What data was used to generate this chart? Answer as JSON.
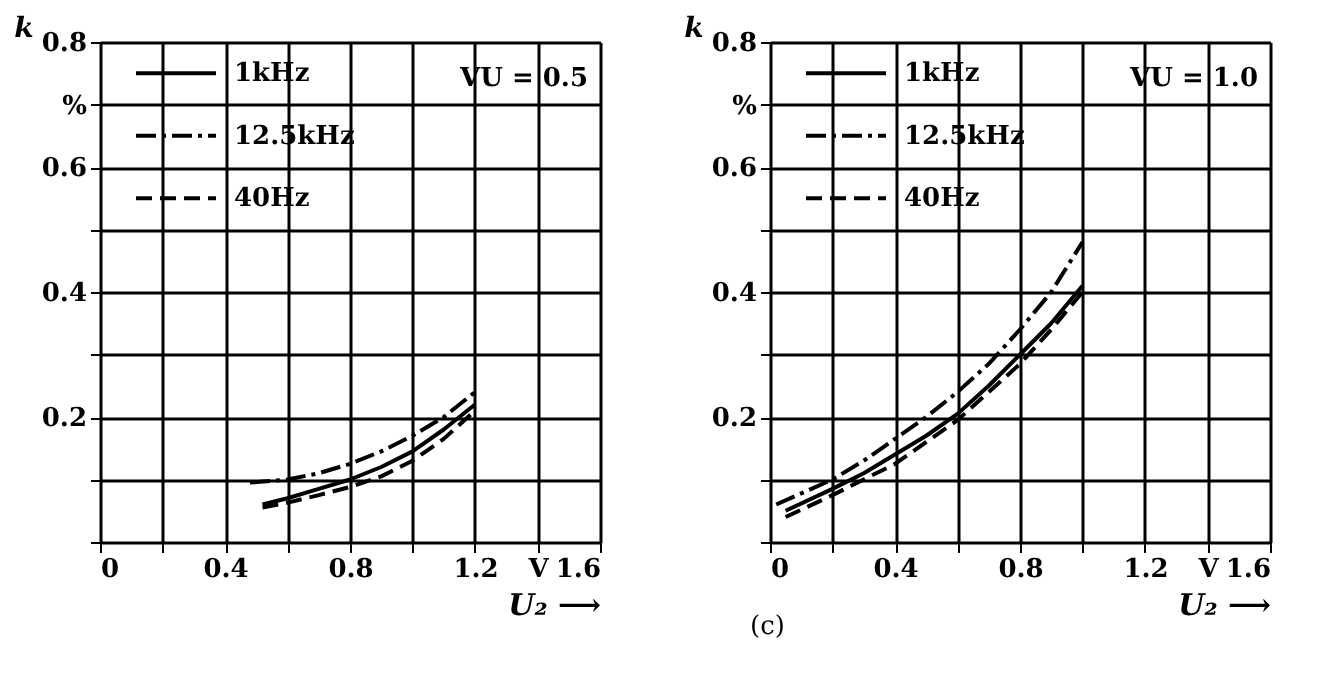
{
  "chart_data": [
    {
      "type": "line",
      "xlabel": "U₂ ⟶",
      "ylabel": "k",
      "annotations": [
        "VU = 0.5"
      ],
      "legend": "top left",
      "grid": true,
      "marker": "none",
      "xlim": [
        0,
        1.6
      ],
      "ylim": [
        0,
        0.8
      ],
      "xticks": [
        0,
        {
          "value": 0.2,
          "label": null
        },
        0.4,
        {
          "value": 0.6,
          "label": null
        },
        0.8,
        {
          "value": 1.0,
          "label": null
        },
        1.2,
        {
          "value": 1.4,
          "label": "V"
        },
        1.6
      ],
      "yticks": [
        {
          "value": 0,
          "label": null
        },
        {
          "value": 0.1,
          "label": null
        },
        0.2,
        {
          "value": 0.3,
          "label": null
        },
        0.4,
        {
          "value": 0.5,
          "label": null
        },
        0.6,
        {
          "value": 0.7,
          "label": "%"
        },
        0.8
      ],
      "series": [
        {
          "name": "1kHz",
          "color": "#000000",
          "line_style": "solid",
          "x": [
            0.52,
            0.6,
            0.7,
            0.8,
            0.9,
            1.0,
            1.1,
            1.2
          ],
          "values": [
            0.06,
            0.07,
            0.085,
            0.1,
            0.12,
            0.145,
            0.18,
            0.22
          ]
        },
        {
          "name": "12.5kHz",
          "color": "#000000",
          "line_style": "dashdot",
          "x": [
            0.48,
            0.6,
            0.7,
            0.8,
            0.9,
            1.0,
            1.1,
            1.2
          ],
          "values": [
            0.095,
            0.1,
            0.11,
            0.125,
            0.145,
            0.17,
            0.2,
            0.24
          ]
        },
        {
          "name": "40Hz",
          "color": "#000000",
          "line_style": "dashed",
          "x": [
            0.52,
            0.6,
            0.7,
            0.8,
            0.9,
            1.0,
            1.1,
            1.2
          ],
          "values": [
            0.055,
            0.063,
            0.075,
            0.088,
            0.105,
            0.13,
            0.165,
            0.21
          ]
        }
      ]
    },
    {
      "type": "line",
      "xlabel": "U₂ ⟶",
      "ylabel": "k",
      "annotations": [
        "VU = 1.0",
        "(c)"
      ],
      "legend": "top left",
      "grid": true,
      "marker": "none",
      "xlim": [
        0,
        1.6
      ],
      "ylim": [
        0,
        0.8
      ],
      "xticks": [
        0,
        {
          "value": 0.2,
          "label": null
        },
        0.4,
        {
          "value": 0.6,
          "label": null
        },
        0.8,
        {
          "value": 1.0,
          "label": null
        },
        1.2,
        {
          "value": 1.4,
          "label": "V"
        },
        1.6
      ],
      "yticks": [
        {
          "value": 0,
          "label": null
        },
        {
          "value": 0.1,
          "label": null
        },
        0.2,
        {
          "value": 0.3,
          "label": null
        },
        0.4,
        {
          "value": 0.5,
          "label": null
        },
        0.6,
        {
          "value": 0.7,
          "label": "%"
        },
        0.8
      ],
      "series": [
        {
          "name": "1kHz",
          "color": "#000000",
          "line_style": "solid",
          "x": [
            0.05,
            0.2,
            0.3,
            0.4,
            0.5,
            0.6,
            0.7,
            0.8,
            0.9,
            1.0
          ],
          "values": [
            0.05,
            0.085,
            0.11,
            0.14,
            0.17,
            0.205,
            0.25,
            0.3,
            0.35,
            0.41
          ]
        },
        {
          "name": "12.5kHz",
          "color": "#000000",
          "line_style": "dashdot",
          "x": [
            0.02,
            0.2,
            0.3,
            0.4,
            0.5,
            0.6,
            0.7,
            0.8,
            0.9,
            1.0
          ],
          "values": [
            0.06,
            0.1,
            0.13,
            0.165,
            0.2,
            0.24,
            0.285,
            0.34,
            0.4,
            0.48
          ]
        },
        {
          "name": "40Hz",
          "color": "#000000",
          "line_style": "dashed",
          "x": [
            0.05,
            0.2,
            0.3,
            0.4,
            0.5,
            0.6,
            0.7,
            0.8,
            0.9,
            1.0
          ],
          "values": [
            0.04,
            0.075,
            0.1,
            0.125,
            0.16,
            0.195,
            0.24,
            0.285,
            0.34,
            0.4
          ]
        }
      ]
    }
  ]
}
